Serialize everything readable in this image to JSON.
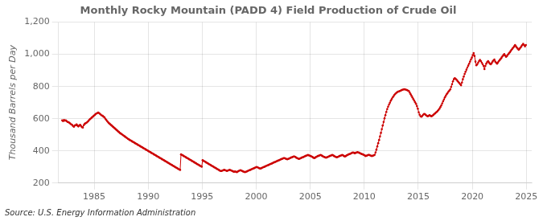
{
  "chart_data": {
    "type": "line",
    "title": "Monthly Rocky Mountain (PADD 4) Field Production of Crude Oil",
    "ylabel": "Thousand Barrels per Day",
    "source": "Source: U.S. Energy Information Administration",
    "color": "#cc0000",
    "marker": "o",
    "grid": true,
    "xlim": [
      1981.7,
      2025.5
    ],
    "xticks": [
      1985,
      1990,
      1995,
      2000,
      2005,
      2010,
      2015,
      2020,
      2025
    ],
    "ylim": [
      200,
      1200
    ],
    "yticks": [
      200,
      400,
      600,
      800,
      {
        "value": 1000,
        "label": "1,000"
      },
      {
        "value": 1200,
        "label": "1,200"
      }
    ],
    "x": [
      1982.041667,
      1982.125,
      1982.208333,
      1982.291667,
      1982.375,
      1982.458333,
      1982.541667,
      1982.625,
      1982.708333,
      1982.791667,
      1982.875,
      1982.958333,
      1983.041667,
      1983.125,
      1983.208333,
      1983.291667,
      1983.375,
      1983.458333,
      1983.541667,
      1983.625,
      1983.708333,
      1983.791667,
      1983.875,
      1983.958333,
      1984.041667,
      1984.125,
      1984.208333,
      1984.291667,
      1984.375,
      1984.458333,
      1984.541667,
      1984.625,
      1984.708333,
      1984.791667,
      1984.875,
      1984.958333,
      1985.041667,
      1985.125,
      1985.208333,
      1985.291667,
      1985.375,
      1985.458333,
      1985.541667,
      1985.625,
      1985.708333,
      1985.791667,
      1985.875,
      1985.958333,
      1986.041667,
      1986.125,
      1986.208333,
      1986.291667,
      1986.375,
      1986.458333,
      1986.541667,
      1986.625,
      1986.708333,
      1986.791667,
      1986.875,
      1986.958333,
      1987.041667,
      1987.125,
      1987.208333,
      1987.291667,
      1987.375,
      1987.458333,
      1987.541667,
      1987.625,
      1987.708333,
      1987.791667,
      1987.875,
      1987.958333,
      1988.041667,
      1988.125,
      1988.208333,
      1988.291667,
      1988.375,
      1988.458333,
      1988.541667,
      1988.625,
      1988.708333,
      1988.791667,
      1988.875,
      1988.958333,
      1989.041667,
      1989.125,
      1989.208333,
      1989.291667,
      1989.375,
      1989.458333,
      1989.541667,
      1989.625,
      1989.708333,
      1989.791667,
      1989.875,
      1989.958333,
      1990.041667,
      1990.125,
      1990.208333,
      1990.291667,
      1990.375,
      1990.458333,
      1990.541667,
      1990.625,
      1990.708333,
      1990.791667,
      1990.875,
      1990.958333,
      1991.041667,
      1991.125,
      1991.208333,
      1991.291667,
      1991.375,
      1991.458333,
      1991.541667,
      1991.625,
      1991.708333,
      1991.791667,
      1991.875,
      1991.958333,
      1992.041667,
      1992.125,
      1992.208333,
      1992.291667,
      1992.375,
      1992.458333,
      1992.541667,
      1992.625,
      1992.708333,
      1992.791667,
      1992.875,
      1992.958333,
      1993.041667,
      1993.125,
      1993.208333,
      1993.291667,
      1993.375,
      1993.458333,
      1993.541667,
      1993.625,
      1993.708333,
      1993.791667,
      1993.875,
      1993.958333,
      1994.041667,
      1994.125,
      1994.208333,
      1994.291667,
      1994.375,
      1994.458333,
      1994.541667,
      1994.625,
      1994.708333,
      1994.791667,
      1994.875,
      1994.958333,
      1995.041667,
      1995.125,
      1995.208333,
      1995.291667,
      1995.375,
      1995.458333,
      1995.541667,
      1995.625,
      1995.708333,
      1995.791667,
      1995.875,
      1995.958333,
      1996.041667,
      1996.125,
      1996.208333,
      1996.291667,
      1996.375,
      1996.458333,
      1996.541667,
      1996.625,
      1996.708333,
      1996.791667,
      1996.875,
      1996.958333,
      1997.041667,
      1997.125,
      1997.208333,
      1997.291667,
      1997.375,
      1997.458333,
      1997.541667,
      1997.625,
      1997.708333,
      1997.791667,
      1997.875,
      1997.958333,
      1998.041667,
      1998.125,
      1998.208333,
      1998.291667,
      1998.375,
      1998.458333,
      1998.541667,
      1998.625,
      1998.708333,
      1998.791667,
      1998.875,
      1998.958333,
      1999.041667,
      1999.125,
      1999.208333,
      1999.291667,
      1999.375,
      1999.458333,
      1999.541667,
      1999.625,
      1999.708333,
      1999.791667,
      1999.875,
      1999.958333,
      2000.041667,
      2000.125,
      2000.208333,
      2000.291667,
      2000.375,
      2000.458333,
      2000.541667,
      2000.625,
      2000.708333,
      2000.791667,
      2000.875,
      2000.958333,
      2001.041667,
      2001.125,
      2001.208333,
      2001.291667,
      2001.375,
      2001.458333,
      2001.541667,
      2001.625,
      2001.708333,
      2001.791667,
      2001.875,
      2001.958333,
      2002.041667,
      2002.125,
      2002.208333,
      2002.291667,
      2002.375,
      2002.458333,
      2002.541667,
      2002.625,
      2002.708333,
      2002.791667,
      2002.875,
      2002.958333,
      2003.041667,
      2003.125,
      2003.208333,
      2003.291667,
      2003.375,
      2003.458333,
      2003.541667,
      2003.625,
      2003.708333,
      2003.791667,
      2003.875,
      2003.958333,
      2004.041667,
      2004.125,
      2004.208333,
      2004.291667,
      2004.375,
      2004.458333,
      2004.541667,
      2004.625,
      2004.708333,
      2004.791667,
      2004.875,
      2004.958333,
      2005.041667,
      2005.125,
      2005.208333,
      2005.291667,
      2005.375,
      2005.458333,
      2005.541667,
      2005.625,
      2005.708333,
      2005.791667,
      2005.875,
      2005.958333,
      2006.041667,
      2006.125,
      2006.208333,
      2006.291667,
      2006.375,
      2006.458333,
      2006.541667,
      2006.625,
      2006.708333,
      2006.791667,
      2006.875,
      2006.958333,
      2007.041667,
      2007.125,
      2007.208333,
      2007.291667,
      2007.375,
      2007.458333,
      2007.541667,
      2007.625,
      2007.708333,
      2007.791667,
      2007.875,
      2007.958333,
      2008.041667,
      2008.125,
      2008.208333,
      2008.291667,
      2008.375,
      2008.458333,
      2008.541667,
      2008.625,
      2008.708333,
      2008.791667,
      2008.875,
      2008.958333,
      2009.041667,
      2009.125,
      2009.208333,
      2009.291667,
      2009.375,
      2009.458333,
      2009.541667,
      2009.625,
      2009.708333,
      2009.791667,
      2009.875,
      2009.958333,
      2010.041667,
      2010.125,
      2010.208333,
      2010.291667,
      2010.375,
      2010.458333,
      2010.541667,
      2010.625,
      2010.708333,
      2010.791667,
      2010.875,
      2010.958333,
      2011.041667,
      2011.125,
      2011.208333,
      2011.291667,
      2011.375,
      2011.458333,
      2011.541667,
      2011.625,
      2011.708333,
      2011.791667,
      2011.875,
      2011.958333,
      2012.041667,
      2012.125,
      2012.208333,
      2012.291667,
      2012.375,
      2012.458333,
      2012.541667,
      2012.625,
      2012.708333,
      2012.791667,
      2012.875,
      2012.958333,
      2013.041667,
      2013.125,
      2013.208333,
      2013.291667,
      2013.375,
      2013.458333,
      2013.541667,
      2013.625,
      2013.708333,
      2013.791667,
      2013.875,
      2013.958333,
      2014.041667,
      2014.125,
      2014.208333,
      2014.291667,
      2014.375,
      2014.458333,
      2014.541667,
      2014.625,
      2014.708333,
      2014.791667,
      2014.875,
      2014.958333,
      2015.041667,
      2015.125,
      2015.208333,
      2015.291667,
      2015.375,
      2015.458333,
      2015.541667,
      2015.625,
      2015.708333,
      2015.791667,
      2015.875,
      2015.958333,
      2016.041667,
      2016.125,
      2016.208333,
      2016.291667,
      2016.375,
      2016.458333,
      2016.541667,
      2016.625,
      2016.708333,
      2016.791667,
      2016.875,
      2016.958333,
      2017.041667,
      2017.125,
      2017.208333,
      2017.291667,
      2017.375,
      2017.458333,
      2017.541667,
      2017.625,
      2017.708333,
      2017.791667,
      2017.875,
      2017.958333,
      2018.041667,
      2018.125,
      2018.208333,
      2018.291667,
      2018.375,
      2018.458333,
      2018.541667,
      2018.625,
      2018.708333,
      2018.791667,
      2018.875,
      2018.958333,
      2019.041667,
      2019.125,
      2019.208333,
      2019.291667,
      2019.375,
      2019.458333,
      2019.541667,
      2019.625,
      2019.708333,
      2019.791667,
      2019.875,
      2019.958333,
      2020.041667,
      2020.125,
      2020.208333,
      2020.291667,
      2020.375,
      2020.458333,
      2020.541667,
      2020.625,
      2020.708333,
      2020.791667,
      2020.875,
      2020.958333,
      2021.041667,
      2021.125,
      2021.208333,
      2021.291667,
      2021.375,
      2021.458333,
      2021.541667,
      2021.625,
      2021.708333,
      2021.791667,
      2021.875,
      2021.958333,
      2022.041667,
      2022.125,
      2022.208333,
      2022.291667,
      2022.375,
      2022.458333,
      2022.541667,
      2022.625,
      2022.708333,
      2022.791667,
      2022.875,
      2022.958333,
      2023.041667,
      2023.125,
      2023.208333,
      2023.291667,
      2023.375,
      2023.458333,
      2023.541667,
      2023.625,
      2023.708333,
      2023.791667,
      2023.875,
      2023.958333,
      2024.041667,
      2024.125,
      2024.208333,
      2024.291667,
      2024.375,
      2024.458333,
      2024.541667,
      2024.625,
      2024.708333,
      2024.791667,
      2024.875,
      2024.958333
    ],
    "values": [
      590,
      585,
      592,
      588,
      590,
      585,
      580,
      578,
      575,
      570,
      565,
      562,
      555,
      550,
      558,
      560,
      565,
      558,
      552,
      558,
      562,
      555,
      548,
      545,
      560,
      568,
      572,
      575,
      580,
      585,
      592,
      598,
      602,
      608,
      612,
      618,
      622,
      628,
      632,
      635,
      638,
      635,
      630,
      625,
      620,
      618,
      612,
      608,
      600,
      592,
      585,
      578,
      572,
      568,
      562,
      558,
      552,
      548,
      542,
      538,
      532,
      528,
      522,
      518,
      512,
      508,
      505,
      500,
      496,
      492,
      488,
      484,
      480,
      475,
      472,
      468,
      465,
      462,
      458,
      455,
      452,
      448,
      445,
      442,
      438,
      435,
      432,
      428,
      425,
      422,
      418,
      415,
      412,
      408,
      405,
      402,
      398,
      395,
      392,
      388,
      385,
      382,
      378,
      375,
      372,
      368,
      365,
      362,
      358,
      355,
      352,
      348,
      345,
      342,
      338,
      335,
      332,
      328,
      325,
      322,
      318,
      315,
      312,
      308,
      305,
      302,
      298,
      295,
      292,
      288,
      285,
      282,
      378,
      375,
      372,
      368,
      365,
      362,
      358,
      355,
      352,
      348,
      345,
      342,
      338,
      335,
      332,
      328,
      325,
      322,
      318,
      315,
      312,
      308,
      305,
      302,
      342,
      338,
      335,
      332,
      328,
      325,
      322,
      318,
      315,
      312,
      308,
      305,
      302,
      298,
      295,
      292,
      288,
      285,
      282,
      278,
      275,
      275,
      278,
      280,
      282,
      280,
      278,
      275,
      278,
      280,
      282,
      280,
      278,
      275,
      272,
      270,
      272,
      270,
      268,
      272,
      275,
      278,
      280,
      278,
      275,
      272,
      270,
      268,
      270,
      272,
      275,
      278,
      280,
      282,
      285,
      288,
      290,
      292,
      295,
      298,
      300,
      298,
      295,
      292,
      290,
      292,
      295,
      298,
      300,
      302,
      305,
      308,
      310,
      312,
      315,
      318,
      320,
      322,
      325,
      328,
      330,
      332,
      335,
      338,
      340,
      342,
      345,
      348,
      350,
      352,
      355,
      355,
      352,
      350,
      348,
      350,
      352,
      355,
      358,
      360,
      362,
      365,
      365,
      362,
      358,
      355,
      352,
      350,
      352,
      355,
      358,
      360,
      362,
      365,
      368,
      370,
      372,
      375,
      372,
      370,
      368,
      365,
      362,
      358,
      355,
      358,
      362,
      365,
      368,
      370,
      372,
      375,
      372,
      368,
      365,
      362,
      360,
      358,
      360,
      362,
      365,
      368,
      370,
      372,
      375,
      372,
      368,
      365,
      362,
      360,
      362,
      365,
      368,
      370,
      372,
      375,
      372,
      368,
      365,
      368,
      372,
      375,
      378,
      380,
      382,
      385,
      388,
      390,
      388,
      385,
      388,
      390,
      392,
      390,
      388,
      385,
      382,
      380,
      378,
      375,
      372,
      368,
      370,
      372,
      375,
      375,
      372,
      370,
      368,
      370,
      372,
      375,
      390,
      408,
      428,
      448,
      468,
      490,
      512,
      535,
      558,
      580,
      602,
      622,
      642,
      660,
      675,
      688,
      700,
      712,
      722,
      732,
      740,
      748,
      755,
      760,
      765,
      768,
      770,
      772,
      775,
      778,
      780,
      782,
      783,
      782,
      780,
      778,
      775,
      772,
      762,
      752,
      742,
      732,
      722,
      712,
      702,
      692,
      678,
      662,
      640,
      625,
      615,
      612,
      618,
      625,
      630,
      628,
      622,
      618,
      615,
      618,
      622,
      618,
      615,
      618,
      622,
      628,
      632,
      638,
      642,
      648,
      655,
      662,
      672,
      682,
      695,
      708,
      720,
      732,
      742,
      752,
      760,
      768,
      775,
      782,
      798,
      815,
      832,
      845,
      852,
      848,
      842,
      835,
      828,
      822,
      815,
      808,
      825,
      845,
      862,
      878,
      892,
      905,
      918,
      930,
      942,
      955,
      968,
      980,
      995,
      1008,
      990,
      955,
      932,
      938,
      948,
      958,
      965,
      958,
      948,
      938,
      928,
      908,
      928,
      942,
      952,
      958,
      950,
      942,
      938,
      945,
      955,
      962,
      968,
      955,
      948,
      942,
      950,
      958,
      965,
      972,
      980,
      988,
      995,
      1002,
      992,
      985,
      990,
      998,
      1005,
      1012,
      1020,
      1028,
      1035,
      1042,
      1050,
      1058,
      1050,
      1042,
      1035,
      1028,
      1035,
      1042,
      1050,
      1058,
      1065,
      1058,
      1050,
      1058
    ]
  }
}
